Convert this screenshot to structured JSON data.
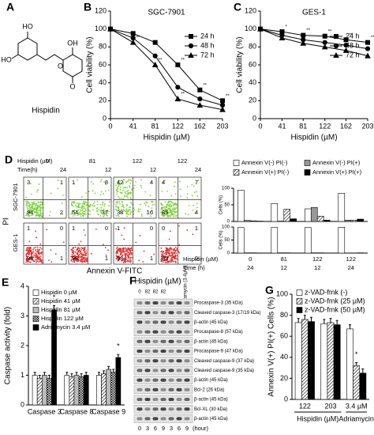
{
  "structure": {
    "panel": "A",
    "name": "Hispidin",
    "atoms": [
      "HO",
      "HO",
      "OH",
      "O",
      "O"
    ]
  },
  "flow": {
    "panel": "D",
    "header": [
      {
        "label": "Hispidin (µM)",
        "values": [
          "0",
          "81",
          "122",
          "122"
        ]
      },
      {
        "label": "Time(h)",
        "values": [
          "24",
          "12",
          "12",
          "24"
        ]
      }
    ],
    "rows": [
      "SGC-7901",
      "GES-1"
    ],
    "plots": [
      [
        [
          3,
          1,
          94,
          2
        ],
        [
          1,
          8,
          54,
          37
        ],
        [
          42,
          4,
          38,
          16
        ],
        [
          4,
          7,
          85,
          4
        ]
      ],
      [
        [
          1,
          0,
          98,
          1
        ],
        [
          1,
          0,
          98,
          1
        ],
        [
          1,
          0,
          98,
          1
        ],
        [
          0,
          1,
          99,
          0
        ]
      ]
    ],
    "ylabel": "PI",
    "xlabel": "Annexin V-FITC",
    "table": [
      {
        "label": "Hispidin (µM)",
        "values": [
          "0",
          "81",
          "122",
          "122"
        ]
      },
      {
        "label": "Time (h)",
        "values": [
          "24",
          "12",
          "12",
          "24"
        ]
      }
    ]
  },
  "blot": {
    "panel": "F",
    "header": "Hispidin (µM)",
    "treatment": "Adriamycin (3.4µM)",
    "doses": [
      "0",
      "82",
      "82",
      "82"
    ],
    "times": [
      "0",
      "3",
      "6",
      "9",
      "3",
      "6",
      "9"
    ],
    "time_unit": "(hour)",
    "bands": [
      "Procaspase-3 (35 kDa)",
      "Cleaved caspase-3 (17/19 kDa)",
      "β-actin (45 kDa)",
      "Procaspase-8 (57 kDa)",
      "β-actin (45 kDa)",
      "Procaspase-9 (47 kDa)",
      "Cleaved caspase-9 (37 kDa)",
      "Cleaved caspase-9 (35 kDa)",
      "β-actin (45 kDa)",
      "Bcl-2 (26 kDa)",
      "β-actin (45 kDa)",
      "Bcl-XL (30 kDa)",
      "β-actin (45 kDa)"
    ]
  },
  "chart_data": [
    {
      "type": "line",
      "panel": "B",
      "title": "SGC-7901",
      "xlabel": "Hispidin (µM)",
      "ylabel": "Cell viability (%)",
      "x": [
        0,
        41,
        81,
        122,
        162,
        203
      ],
      "xlim": [
        0,
        203
      ],
      "xticks": [
        0,
        41,
        81,
        122,
        162,
        203
      ],
      "ylim": [
        0,
        120
      ],
      "yticks": [
        0,
        20,
        40,
        60,
        80,
        100,
        120
      ],
      "series": [
        {
          "name": "24 h",
          "color": "#000000",
          "marker": "square",
          "values": [
            100,
            95,
            85,
            60,
            32,
            20
          ]
        },
        {
          "name": "48 h",
          "color": "#000000",
          "marker": "circle",
          "values": [
            100,
            90,
            70,
            35,
            22,
            15
          ]
        },
        {
          "name": "72 h",
          "color": "#000000",
          "marker": "triangle",
          "values": [
            100,
            85,
            60,
            22,
            15,
            10
          ]
        }
      ],
      "annotations": [
        {
          "text": "**",
          "series": 0,
          "point": 3
        },
        {
          "text": "**",
          "series": 0,
          "point": 4
        },
        {
          "text": "**",
          "series": 0,
          "point": 5
        },
        {
          "text": "**",
          "series": 2,
          "point": 1
        },
        {
          "text": "**",
          "series": 2,
          "point": 2
        },
        {
          "text": "**",
          "series": 2,
          "point": 3
        }
      ]
    },
    {
      "type": "line",
      "panel": "C",
      "title": "GES-1",
      "xlabel": "Hispidin (µM)",
      "ylabel": "Cell viability (%)",
      "x": [
        0,
        41,
        81,
        122,
        162,
        203
      ],
      "xlim": [
        0,
        203
      ],
      "xticks": [
        0,
        41,
        81,
        122,
        162,
        203
      ],
      "ylim": [
        0,
        120
      ],
      "yticks": [
        0,
        20,
        40,
        60,
        80,
        100,
        120
      ],
      "series": [
        {
          "name": "24 h",
          "color": "#000000",
          "marker": "square",
          "values": [
            100,
            97,
            93,
            92,
            88,
            85
          ]
        },
        {
          "name": "48 h",
          "color": "#000000",
          "marker": "circle",
          "values": [
            100,
            93,
            88,
            85,
            82,
            78
          ]
        },
        {
          "name": "72 h",
          "color": "#000000",
          "marker": "triangle",
          "values": [
            100,
            90,
            84,
            80,
            76,
            70
          ]
        }
      ],
      "annotations": [
        {
          "text": "*",
          "series": 0,
          "point": 1
        },
        {
          "text": "**",
          "series": 0,
          "point": 2
        },
        {
          "text": "**",
          "series": 0,
          "point": 3
        },
        {
          "text": "**",
          "series": 0,
          "point": 4
        },
        {
          "text": "**",
          "series": 0,
          "point": 5
        }
      ]
    },
    {
      "type": "bar",
      "panel": "E",
      "ylabel": "Caspase activity (fold)",
      "categories": [
        "Caspase 3",
        "Caspase 8",
        "Caspase 9"
      ],
      "ylim": [
        0,
        4
      ],
      "yticks": [
        0,
        1,
        2,
        3,
        4
      ],
      "series": [
        {
          "name": "Hispidin 0 µM",
          "color": "#ffffff",
          "pattern": "none",
          "values": [
            1,
            1,
            1
          ],
          "errors": [
            0.1,
            0.1,
            0.1
          ]
        },
        {
          "name": "Hispidin 41 µM",
          "color": "#ffffff",
          "pattern": "diagonal",
          "values": [
            0.9,
            0.95,
            1.05
          ],
          "errors": [
            0.1,
            0.1,
            0.1
          ]
        },
        {
          "name": "Hispidin 81 µM",
          "color": "#bbbbbb",
          "pattern": "none",
          "values": [
            1,
            1,
            1.2
          ],
          "errors": [
            0.1,
            0.1,
            0.1
          ]
        },
        {
          "name": "Hispidin 122 µM",
          "color": "#ffffff",
          "pattern": "check",
          "values": [
            0.9,
            0.95,
            1.1
          ],
          "errors": [
            0.1,
            0.1,
            0.1
          ]
        },
        {
          "name": "Adriamycin 3.4 µM",
          "color": "#000000",
          "pattern": "none",
          "values": [
            3.2,
            1,
            1.6
          ],
          "errors": [
            0.15,
            0.1,
            0.1
          ]
        }
      ],
      "annotations": [
        {
          "text": "*",
          "series": 4,
          "category": 0
        },
        {
          "text": "*",
          "series": 4,
          "category": 2
        }
      ]
    },
    {
      "type": "bar",
      "panel": "G",
      "ylabel": "Annexin V(+) PI(+) Cells (%)",
      "categories": [
        "122",
        "203",
        "3.4 µM"
      ],
      "ylim": [
        0,
        100
      ],
      "yticks": [
        0,
        20,
        40,
        60,
        80,
        100
      ],
      "xlabel_groups": [
        {
          "label": "Hispidin (µM)",
          "from": 0,
          "to": 1
        },
        {
          "label": "Adriamycin",
          "from": 2,
          "to": 2
        }
      ],
      "series": [
        {
          "name": "z-VAD-fmk (-)",
          "color": "#ffffff",
          "pattern": "none",
          "values": [
            73,
            72,
            67
          ],
          "errors": [
            4,
            4,
            4
          ]
        },
        {
          "name": "z-VAD-fmk (25 µM)",
          "color": "#ffffff",
          "pattern": "diagonal",
          "values": [
            76,
            73,
            32
          ],
          "errors": [
            4,
            4,
            3
          ]
        },
        {
          "name": "z-VAD-fmk (50 µM)",
          "color": "#000000",
          "pattern": "none",
          "values": [
            74,
            71,
            25
          ],
          "errors": [
            4,
            4,
            4
          ]
        }
      ],
      "annotations": [
        {
          "text": "*",
          "series": 1,
          "category": 2
        }
      ]
    },
    {
      "type": "bar",
      "ylabel": "Cells (%)",
      "categories": [
        null,
        null,
        null,
        null
      ],
      "ylim": [
        0,
        100
      ],
      "yticks": [
        0,
        50,
        100
      ],
      "series": [
        {
          "name": "Annexin V(-) PI(-)",
          "color": "#ffffff",
          "pattern": "none",
          "values": [
            94,
            54,
            38,
            85
          ]
        },
        {
          "name": "Annexin V(-) PI(+)",
          "color": "#999999",
          "pattern": "none",
          "values": [
            3,
            1,
            42,
            4
          ]
        },
        {
          "name": "Annexin V(+) PI(-)",
          "color": "#ffffff",
          "pattern": "diagonal",
          "values": [
            2,
            37,
            16,
            4
          ]
        },
        {
          "name": "Annexin V(+) PI(+)",
          "color": "#000000",
          "pattern": "none",
          "values": [
            1,
            8,
            4,
            7
          ]
        }
      ]
    },
    {
      "type": "bar",
      "ylabel": "Cells (%)",
      "categories": [
        null,
        null,
        null,
        null
      ],
      "ylim": [
        0,
        100
      ],
      "yticks": [
        0,
        50,
        100
      ],
      "series": [
        {
          "color": "#ffffff",
          "pattern": "none",
          "values": [
            98,
            98,
            98,
            99
          ]
        },
        {
          "color": "#999999",
          "pattern": "none",
          "values": [
            1,
            1,
            1,
            0
          ]
        },
        {
          "color": "#ffffff",
          "pattern": "diagonal",
          "values": [
            1,
            1,
            1,
            0
          ]
        },
        {
          "color": "#000000",
          "pattern": "none",
          "values": [
            0,
            0,
            0,
            1
          ]
        }
      ]
    }
  ]
}
